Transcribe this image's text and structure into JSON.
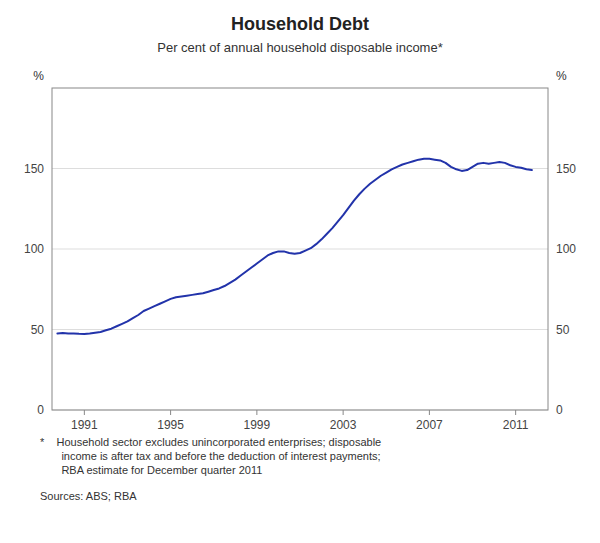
{
  "chart_data": {
    "type": "line",
    "title": "Household Debt",
    "subtitle": "Per cent of annual household disposable income*",
    "ylabel": "%",
    "y2label": "%",
    "color": "#2233AA",
    "grid": true,
    "xlim": [
      1989.5,
      2012.5
    ],
    "xticks": [
      1991,
      1995,
      1999,
      2003,
      2007,
      2011
    ],
    "ylim": [
      0,
      200
    ],
    "yticks": [
      0,
      50,
      100,
      150
    ],
    "y2lim": [
      0,
      200
    ],
    "y2ticks": [
      0,
      50,
      100,
      150
    ],
    "annotations": [
      "*    Household sector excludes unincorporated enterprises; disposable\n       income is after tax and before the deduction of interest payments;\n       RBA estimate for December quarter 2011",
      "Sources: ABS; RBA"
    ],
    "x": [
      1989.75,
      1990.0,
      1990.25,
      1990.5,
      1990.75,
      1991.0,
      1991.25,
      1991.5,
      1991.75,
      1992.0,
      1992.25,
      1992.5,
      1992.75,
      1993.0,
      1993.25,
      1993.5,
      1993.75,
      1994.0,
      1994.25,
      1994.5,
      1994.75,
      1995.0,
      1995.25,
      1995.5,
      1995.75,
      1996.0,
      1996.25,
      1996.5,
      1996.75,
      1997.0,
      1997.25,
      1997.5,
      1997.75,
      1998.0,
      1998.25,
      1998.5,
      1998.75,
      1999.0,
      1999.25,
      1999.5,
      1999.75,
      2000.0,
      2000.25,
      2000.5,
      2000.75,
      2001.0,
      2001.25,
      2001.5,
      2001.75,
      2002.0,
      2002.25,
      2002.5,
      2002.75,
      2003.0,
      2003.25,
      2003.5,
      2003.75,
      2004.0,
      2004.25,
      2004.5,
      2004.75,
      2005.0,
      2005.25,
      2005.5,
      2005.75,
      2006.0,
      2006.25,
      2006.5,
      2006.75,
      2007.0,
      2007.25,
      2007.5,
      2007.75,
      2008.0,
      2008.25,
      2008.5,
      2008.75,
      2009.0,
      2009.25,
      2009.5,
      2009.75,
      2010.0,
      2010.25,
      2010.5,
      2010.75,
      2011.0,
      2011.25,
      2011.5,
      2011.75
    ],
    "values": [
      47.5,
      47.8,
      47.5,
      47.5,
      47.3,
      47.2,
      47.5,
      48.0,
      48.5,
      49.5,
      50.5,
      52.0,
      53.5,
      55.0,
      57.0,
      59.0,
      61.5,
      63.0,
      64.5,
      66.0,
      67.5,
      69.0,
      70.0,
      70.5,
      71.0,
      71.5,
      72.0,
      72.5,
      73.5,
      74.5,
      75.5,
      77.0,
      79.0,
      81.0,
      83.5,
      86.0,
      88.5,
      91.0,
      93.5,
      96.0,
      97.5,
      98.5,
      98.5,
      97.5,
      97.0,
      97.5,
      99.0,
      100.5,
      103.0,
      106.0,
      109.5,
      113.0,
      117.0,
      121.0,
      125.5,
      130.0,
      134.0,
      137.5,
      140.5,
      143.0,
      145.5,
      147.5,
      149.5,
      151.0,
      152.5,
      153.5,
      154.5,
      155.5,
      156.0,
      156.0,
      155.5,
      155.0,
      153.5,
      151.0,
      149.5,
      148.5,
      149.0,
      151.0,
      153.0,
      153.5,
      153.0,
      153.5,
      154.0,
      153.5,
      152.0,
      151.0,
      150.5,
      149.5,
      149.0
    ]
  }
}
